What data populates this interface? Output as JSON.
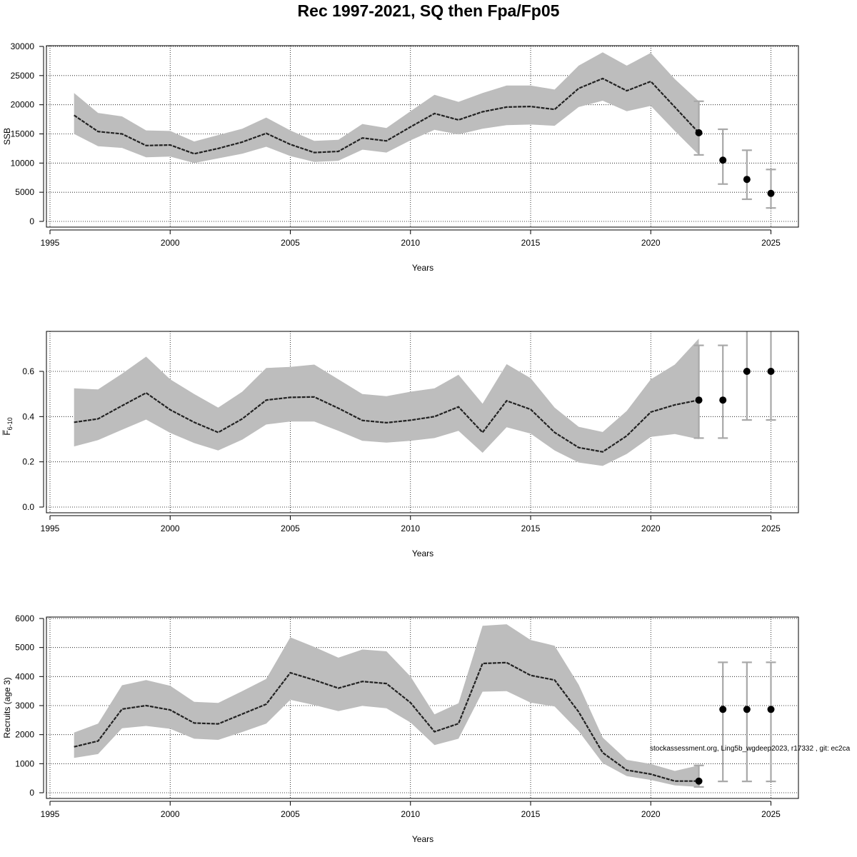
{
  "title": "Rec 1997-2021, SQ then Fpa/Fp05",
  "footer_note": "stockassessment.org, Ling5b_wgdeep2023, r17332 , git: ec2ca",
  "colors": {
    "band": "#bdbdbd",
    "line": "#222222",
    "errorbar": "#a8a8a8",
    "point": "#000000",
    "grid": "#000000"
  },
  "chart_data": [
    {
      "type": "line",
      "ylabel": "SSB",
      "xlabel": "Years",
      "xlim": [
        1995,
        2025
      ],
      "ylim": [
        0,
        30000
      ],
      "x_ticks": [
        "1995",
        "2000",
        "2005",
        "2010",
        "2015",
        "2020",
        "2025"
      ],
      "y_ticks": [
        "0",
        "5000",
        "10000",
        "15000",
        "20000",
        "25000",
        "30000"
      ],
      "grid": true,
      "years": [
        1996,
        1997,
        1998,
        1999,
        2000,
        2001,
        2002,
        2003,
        2004,
        2005,
        2006,
        2007,
        2008,
        2009,
        2010,
        2011,
        2012,
        2013,
        2014,
        2015,
        2016,
        2017,
        2018,
        2019,
        2020,
        2021,
        2022
      ],
      "estimate": [
        18200,
        15400,
        15000,
        13000,
        13100,
        11600,
        12500,
        13600,
        15100,
        13200,
        11800,
        12000,
        14300,
        13800,
        16200,
        18500,
        17400,
        18800,
        19600,
        19700,
        19200,
        22800,
        24500,
        22400,
        24000,
        19600,
        15200
      ],
      "lower": [
        15000,
        12900,
        12600,
        11000,
        11100,
        10000,
        10800,
        11600,
        12800,
        11200,
        10200,
        10400,
        12300,
        11800,
        13900,
        15700,
        14900,
        15900,
        16500,
        16600,
        16400,
        19600,
        20700,
        18900,
        19800,
        15500,
        11400
      ],
      "upper": [
        22000,
        18600,
        18000,
        15600,
        15500,
        13700,
        14800,
        15900,
        17800,
        15600,
        13800,
        14000,
        16700,
        16000,
        18900,
        21700,
        20500,
        22000,
        23300,
        23300,
        22600,
        26700,
        29000,
        26700,
        28900,
        24400,
        20600
      ],
      "forecast": [
        {
          "year": 2022,
          "median": 15200,
          "low": 11400,
          "high": 20600
        },
        {
          "year": 2023,
          "median": 10500,
          "low": 6400,
          "high": 15800
        },
        {
          "year": 2024,
          "median": 7200,
          "low": 3800,
          "high": 12200
        },
        {
          "year": 2025,
          "median": 4800,
          "low": 2300,
          "high": 8900
        }
      ]
    },
    {
      "type": "line",
      "ylabel": "F̅6-10",
      "xlabel": "Years",
      "xlim": [
        1995,
        2025
      ],
      "ylim": [
        0,
        0.8
      ],
      "x_ticks": [
        "1995",
        "2000",
        "2005",
        "2010",
        "2015",
        "2020",
        "2025"
      ],
      "y_ticks": [
        "0.0",
        "0.2",
        "0.4",
        "0.6"
      ],
      "grid": true,
      "years": [
        1996,
        1997,
        1998,
        1999,
        2000,
        2001,
        2002,
        2003,
        2004,
        2005,
        2006,
        2007,
        2008,
        2009,
        2010,
        2011,
        2012,
        2013,
        2014,
        2015,
        2016,
        2017,
        2018,
        2019,
        2020,
        2021,
        2022
      ],
      "estimate": [
        0.375,
        0.39,
        0.448,
        0.505,
        0.43,
        0.375,
        0.33,
        0.39,
        0.473,
        0.485,
        0.487,
        0.437,
        0.383,
        0.373,
        0.384,
        0.4,
        0.443,
        0.33,
        0.47,
        0.432,
        0.33,
        0.263,
        0.244,
        0.315,
        0.42,
        0.452,
        0.473
      ],
      "lower": [
        0.268,
        0.296,
        0.342,
        0.387,
        0.328,
        0.283,
        0.25,
        0.298,
        0.365,
        0.378,
        0.378,
        0.337,
        0.293,
        0.285,
        0.293,
        0.305,
        0.337,
        0.24,
        0.353,
        0.325,
        0.25,
        0.197,
        0.182,
        0.235,
        0.31,
        0.323,
        0.3
      ],
      "upper": [
        0.525,
        0.52,
        0.59,
        0.665,
        0.565,
        0.5,
        0.44,
        0.51,
        0.615,
        0.62,
        0.63,
        0.565,
        0.5,
        0.49,
        0.51,
        0.525,
        0.585,
        0.457,
        0.632,
        0.57,
        0.44,
        0.355,
        0.332,
        0.425,
        0.565,
        0.63,
        0.745
      ],
      "forecast": [
        {
          "year": 2022,
          "median": 0.473,
          "low": 0.305,
          "high": 0.715
        },
        {
          "year": 2023,
          "median": 0.473,
          "low": 0.305,
          "high": 0.715
        },
        {
          "year": 2024,
          "median": 0.6,
          "low": 0.385,
          "high": 0.8
        },
        {
          "year": 2025,
          "median": 0.6,
          "low": 0.385,
          "high": 0.8
        }
      ]
    },
    {
      "type": "line",
      "ylabel": "Recruits (age 3)",
      "xlabel": "Years",
      "xlim": [
        1995,
        2025
      ],
      "ylim": [
        0,
        6000
      ],
      "x_ticks": [
        "1995",
        "2000",
        "2005",
        "2010",
        "2015",
        "2020",
        "2025"
      ],
      "y_ticks": [
        "0",
        "1000",
        "2000",
        "3000",
        "4000",
        "5000",
        "6000"
      ],
      "grid": true,
      "years": [
        1996,
        1997,
        1998,
        1999,
        2000,
        2001,
        2002,
        2003,
        2004,
        2005,
        2006,
        2007,
        2008,
        2009,
        2010,
        2011,
        2012,
        2013,
        2014,
        2015,
        2016,
        2017,
        2018,
        2019,
        2020,
        2021,
        2022
      ],
      "estimate": [
        1580,
        1780,
        2880,
        3000,
        2850,
        2400,
        2370,
        2710,
        3050,
        4130,
        3880,
        3600,
        3830,
        3760,
        3100,
        2100,
        2380,
        4450,
        4480,
        4040,
        3880,
        2780,
        1380,
        780,
        640,
        400,
        400
      ],
      "lower": [
        1200,
        1330,
        2220,
        2300,
        2200,
        1860,
        1820,
        2090,
        2380,
        3200,
        3020,
        2810,
        2990,
        2910,
        2420,
        1640,
        1860,
        3480,
        3500,
        3100,
        2970,
        2120,
        1020,
        570,
        440,
        250,
        200
      ],
      "upper": [
        2070,
        2380,
        3700,
        3880,
        3680,
        3130,
        3090,
        3500,
        3920,
        5350,
        5020,
        4650,
        4930,
        4870,
        4000,
        2700,
        3080,
        5750,
        5800,
        5260,
        5060,
        3720,
        1900,
        1130,
        990,
        750,
        940
      ],
      "forecast": [
        {
          "year": 2022,
          "median": 400,
          "low": 200,
          "high": 940
        },
        {
          "year": 2023,
          "median": 2870,
          "low": 390,
          "high": 4490
        },
        {
          "year": 2024,
          "median": 2870,
          "low": 390,
          "high": 4490
        },
        {
          "year": 2025,
          "median": 2870,
          "low": 390,
          "high": 4490
        }
      ]
    }
  ]
}
